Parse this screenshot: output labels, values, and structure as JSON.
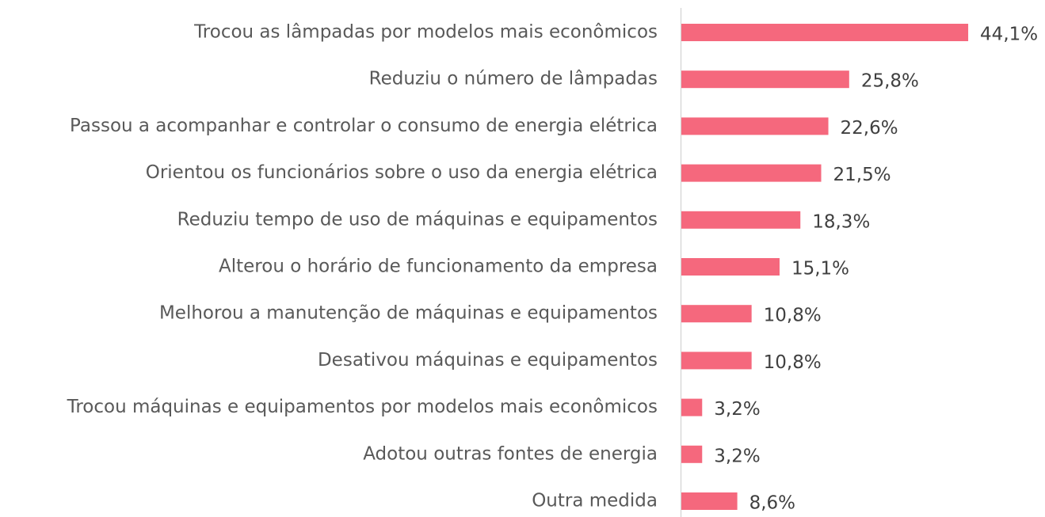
{
  "chart_data": {
    "type": "bar",
    "orientation": "horizontal",
    "color": "#f5687d",
    "categories": [
      "Trocou as lâmpadas por modelos mais econômicos",
      "Reduziu o número de lâmpadas",
      "Passou a acompanhar e controlar o consumo de energia elétrica",
      "Orientou os funcionários sobre o uso da energia elétrica",
      "Reduziu tempo de uso de máquinas e equipamentos",
      "Alterou o horário de funcionamento da empresa",
      "Melhorou a manutenção de máquinas e equipamentos",
      "Desativou máquinas e equipamentos",
      "Trocou máquinas e equipamentos por modelos mais econômicos",
      "Adotou outras fontes de energia",
      "Outra medida"
    ],
    "values": [
      44.1,
      25.8,
      22.6,
      21.5,
      18.3,
      15.1,
      10.8,
      10.8,
      3.2,
      3.2,
      8.6
    ],
    "value_labels": [
      "44,1%",
      "25,8%",
      "22,6%",
      "21,5%",
      "18,3%",
      "15,1%",
      "10,8%",
      "10,8%",
      "3,2%",
      "3,2%",
      "8,6%"
    ]
  }
}
